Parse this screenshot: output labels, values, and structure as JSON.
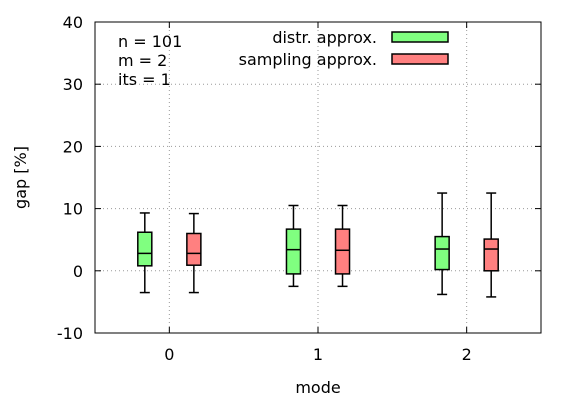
{
  "chart_data": {
    "type": "boxplot",
    "xlabel": "mode",
    "ylabel": "gap [%]",
    "xlim": [
      -0.5,
      2.5
    ],
    "ylim": [
      -10,
      40
    ],
    "grid": true,
    "legend_position": "top-right",
    "x_ticks": [
      "0",
      "1",
      "2"
    ],
    "y_ticks": [
      "-10",
      "0",
      "10",
      "20",
      "30",
      "40"
    ],
    "annotations": [
      "n = 101",
      "m = 2",
      "its = 1"
    ],
    "series": [
      {
        "name": "distr. approx.",
        "color": "#80ff80",
        "boxes": [
          {
            "x": 0,
            "min": -3.5,
            "q1": 0.8,
            "median": 2.8,
            "q3": 6.2,
            "max": 9.3
          },
          {
            "x": 1,
            "min": -2.5,
            "q1": -0.5,
            "median": 3.4,
            "q3": 6.7,
            "max": 10.5
          },
          {
            "x": 2,
            "min": -3.8,
            "q1": 0.2,
            "median": 3.5,
            "q3": 5.5,
            "max": 12.5
          }
        ]
      },
      {
        "name": "sampling approx.",
        "color": "#ff8080",
        "boxes": [
          {
            "x": 0,
            "min": -3.5,
            "q1": 0.9,
            "median": 2.8,
            "q3": 6.0,
            "max": 9.2
          },
          {
            "x": 1,
            "min": -2.5,
            "q1": -0.5,
            "median": 3.3,
            "q3": 6.7,
            "max": 10.5
          },
          {
            "x": 2,
            "min": -4.2,
            "q1": 0.0,
            "median": 3.5,
            "q3": 5.1,
            "max": 12.5
          }
        ]
      }
    ]
  }
}
